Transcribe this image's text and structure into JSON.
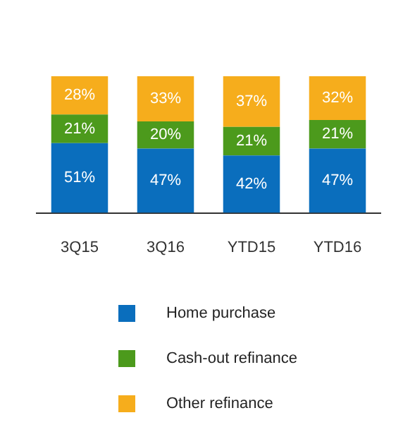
{
  "chart_data": {
    "type": "bar",
    "stacked": true,
    "legend": "bottom",
    "categories": [
      "3Q15",
      "3Q16",
      "YTD15",
      "YTD16"
    ],
    "series": [
      {
        "name": "Home purchase",
        "color": "#0a6ebd",
        "values": [
          51,
          47,
          42,
          47
        ],
        "value_labels": [
          "51%",
          "47%",
          "42%",
          "47%"
        ]
      },
      {
        "name": "Cash-out refinance",
        "color": "#4c9a1c",
        "values": [
          21,
          20,
          21,
          21
        ],
        "value_labels": [
          "21%",
          "20%",
          "21%",
          "21%"
        ]
      },
      {
        "name": "Other refinance",
        "color": "#f6ad1c",
        "values": [
          28,
          33,
          37,
          32
        ],
        "value_labels": [
          "28%",
          "33%",
          "37%",
          "32%"
        ]
      }
    ]
  }
}
